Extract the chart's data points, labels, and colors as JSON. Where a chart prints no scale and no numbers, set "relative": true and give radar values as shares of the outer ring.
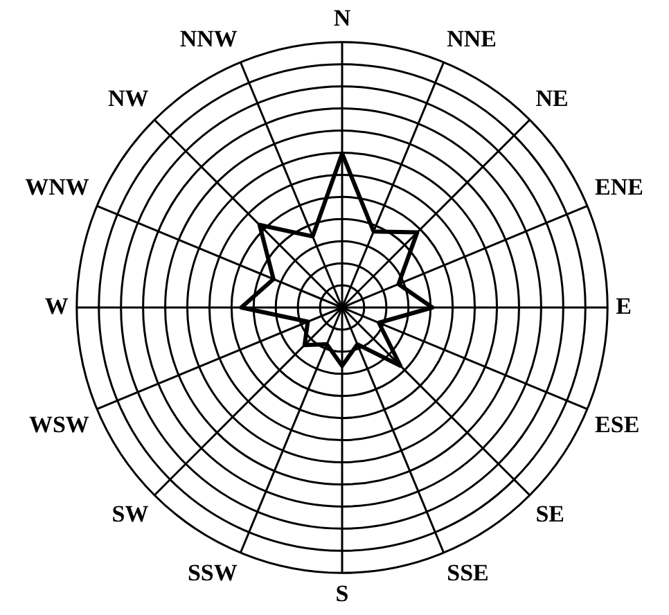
{
  "chart_data": {
    "type": "radar",
    "relative": true,
    "grid": true,
    "marker": "none",
    "categories": [
      "N",
      "NNE",
      "NE",
      "ENE",
      "E",
      "ESE",
      "SE",
      "SSE",
      "S",
      "SSW",
      "SW",
      "WSW",
      "W",
      "WNW",
      "NW",
      "NNW"
    ],
    "series": [
      {
        "color": "#000000",
        "values": [
          0.58,
          0.31,
          0.4,
          0.23,
          0.34,
          0.15,
          0.31,
          0.15,
          0.22,
          0.15,
          0.2,
          0.14,
          0.38,
          0.28,
          0.44,
          0.29
        ]
      }
    ]
  }
}
